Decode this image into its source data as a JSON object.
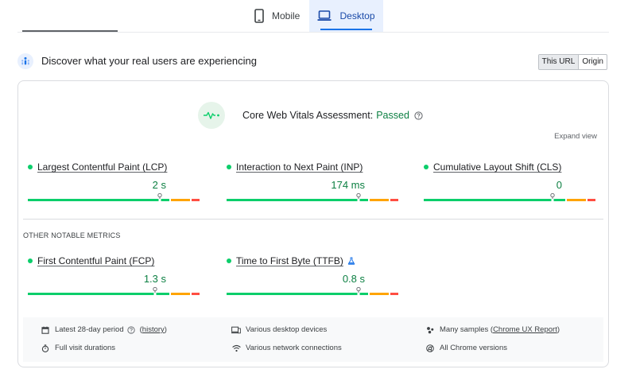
{
  "tabs": {
    "mobile": "Mobile",
    "desktop": "Desktop",
    "active": "Desktop"
  },
  "header": {
    "title": "Discover what your real users are experiencing",
    "toggle": {
      "this_url": "This URL",
      "origin": "Origin",
      "active": "This URL"
    }
  },
  "assessment": {
    "label": "Core Web Vitals Assessment:",
    "status": "Passed",
    "expand": "Expand view"
  },
  "core_metrics": [
    {
      "label": "Largest Contentful Paint (LCP)",
      "value": "2 s",
      "marker": 0.77
    },
    {
      "label": "Interaction to Next Paint (INP)",
      "value": "174 ms",
      "marker": 0.77
    },
    {
      "label": "Cumulative Layout Shift (CLS)",
      "value": "0",
      "marker": 0.75
    }
  ],
  "other_title": "OTHER NOTABLE METRICS",
  "other_metrics": [
    {
      "label": "First Contentful Paint (FCP)",
      "value": "1.3 s",
      "marker": 0.74
    },
    {
      "label": "Time to First Byte (TTFB)",
      "value": "0.8 s",
      "marker": 0.77,
      "experimental": true
    }
  ],
  "footer": {
    "period": "Latest 28-day period",
    "history": "history",
    "durations": "Full visit durations",
    "devices": "Various desktop devices",
    "network": "Various network connections",
    "samples_prefix": "Many samples (",
    "samples_link": "Chrome UX Report",
    "samples_suffix": ")",
    "versions": "All Chrome versions"
  },
  "colors": {
    "good": "#0cce6b",
    "needs_improvement": "#ffa400",
    "poor": "#ff4e42",
    "passed_text": "#0d8043",
    "accent": "#1a73e8"
  },
  "icons": {
    "mobile": "smartphone-icon",
    "desktop": "laptop-icon",
    "header": "users-icon",
    "assessment": "heartbeat-icon"
  }
}
